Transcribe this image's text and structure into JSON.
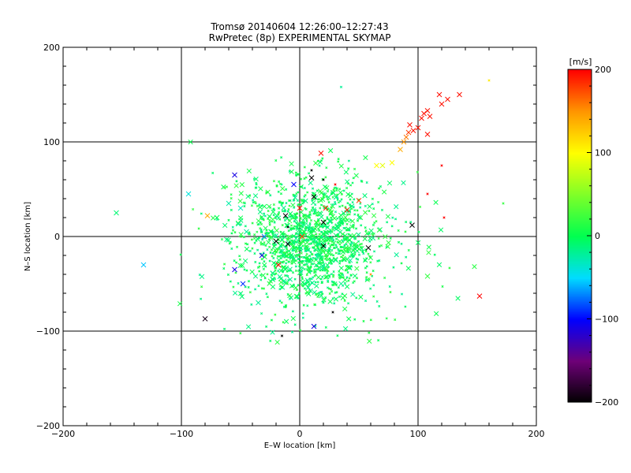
{
  "chart_data": {
    "type": "scatter",
    "title": "Tromsø 20140604 12:26:00–12:27:43",
    "subtitle": "RwPretec (8p) EXPERIMENTAL SKYMAP",
    "xlabel": "E–W location [km]",
    "ylabel": "N–S location [km]",
    "xlim": [
      -200,
      200
    ],
    "ylim": [
      -200,
      200
    ],
    "xticks": [
      "−200",
      "−100",
      "0",
      "100",
      "200"
    ],
    "yticks": [
      "−200",
      "−100",
      "0",
      "100",
      "200"
    ],
    "grid": true,
    "colorbar": {
      "label": "[m/s]",
      "range": [
        -200,
        200
      ],
      "ticks": [
        "200",
        "100",
        "0",
        "−100",
        "−200"
      ]
    },
    "large_markers": [
      {
        "x": -155,
        "y": 25,
        "v": -10
      },
      {
        "x": -132,
        "y": -30,
        "v": -55
      },
      {
        "x": -94,
        "y": 45,
        "v": -40
      },
      {
        "x": -80,
        "y": -87,
        "v": -190
      },
      {
        "x": -78,
        "y": 22,
        "v": 140
      },
      {
        "x": -70,
        "y": 20,
        "v": 0
      },
      {
        "x": -60,
        "y": 35,
        "v": -25
      },
      {
        "x": -55,
        "y": 65,
        "v": -110
      },
      {
        "x": -55,
        "y": -35,
        "v": -110
      },
      {
        "x": -50,
        "y": 30,
        "v": -30
      },
      {
        "x": -48,
        "y": -50,
        "v": -90
      },
      {
        "x": -45,
        "y": 5,
        "v": -20
      },
      {
        "x": -35,
        "y": -70,
        "v": -20
      },
      {
        "x": -32,
        "y": -20,
        "v": -110
      },
      {
        "x": -30,
        "y": 0,
        "v": -70
      },
      {
        "x": -20,
        "y": -5,
        "v": -200
      },
      {
        "x": -18,
        "y": -30,
        "v": 200
      },
      {
        "x": -12,
        "y": 22,
        "v": -200
      },
      {
        "x": -10,
        "y": -8,
        "v": -195
      },
      {
        "x": -5,
        "y": 55,
        "v": -100
      },
      {
        "x": 0,
        "y": 30,
        "v": 190
      },
      {
        "x": 2,
        "y": 0,
        "v": 180
      },
      {
        "x": 10,
        "y": 62,
        "v": -200
      },
      {
        "x": 12,
        "y": 42,
        "v": -200
      },
      {
        "x": 12,
        "y": -95,
        "v": -110
      },
      {
        "x": 18,
        "y": 88,
        "v": 195
      },
      {
        "x": 20,
        "y": 15,
        "v": -200
      },
      {
        "x": 20,
        "y": -10,
        "v": -200
      },
      {
        "x": 22,
        "y": 30,
        "v": 190
      },
      {
        "x": 40,
        "y": 28,
        "v": 190
      },
      {
        "x": 50,
        "y": 38,
        "v": 180
      },
      {
        "x": 58,
        "y": -12,
        "v": -200
      },
      {
        "x": 65,
        "y": 75,
        "v": 100
      },
      {
        "x": 70,
        "y": 75,
        "v": 90
      },
      {
        "x": 78,
        "y": 78,
        "v": 100
      },
      {
        "x": 85,
        "y": 92,
        "v": 140
      },
      {
        "x": 88,
        "y": 100,
        "v": 150
      },
      {
        "x": 90,
        "y": 105,
        "v": 160
      },
      {
        "x": 92,
        "y": 110,
        "v": 180
      },
      {
        "x": 93,
        "y": 118,
        "v": 195
      },
      {
        "x": 95,
        "y": 12,
        "v": -200
      },
      {
        "x": 96,
        "y": 112,
        "v": 195
      },
      {
        "x": 100,
        "y": 115,
        "v": 195
      },
      {
        "x": 103,
        "y": 125,
        "v": 195
      },
      {
        "x": 105,
        "y": 130,
        "v": 195
      },
      {
        "x": 108,
        "y": 133,
        "v": 195
      },
      {
        "x": 110,
        "y": 127,
        "v": 195
      },
      {
        "x": 108,
        "y": 108,
        "v": 195
      },
      {
        "x": 108,
        "y": -42,
        "v": 20
      },
      {
        "x": 118,
        "y": 150,
        "v": 195
      },
      {
        "x": 120,
        "y": 140,
        "v": 195
      },
      {
        "x": 125,
        "y": 145,
        "v": 195
      },
      {
        "x": 135,
        "y": 150,
        "v": 195
      },
      {
        "x": 152,
        "y": -63,
        "v": 200
      }
    ],
    "small_markers": [
      {
        "x": 160,
        "y": 165,
        "v": 110
      },
      {
        "x": 120,
        "y": 75,
        "v": 200
      },
      {
        "x": 122,
        "y": 20,
        "v": 200
      },
      {
        "x": 108,
        "y": 45,
        "v": 200
      },
      {
        "x": 172,
        "y": 35,
        "v": 20
      },
      {
        "x": 35,
        "y": 158,
        "v": -20
      },
      {
        "x": 20,
        "y": 60,
        "v": -200
      },
      {
        "x": 30,
        "y": 55,
        "v": 200
      },
      {
        "x": -15,
        "y": -105,
        "v": -200
      },
      {
        "x": 28,
        "y": -80,
        "v": -200
      },
      {
        "x": -10,
        "y": 10,
        "v": -200
      },
      {
        "x": 60,
        "y": -40,
        "v": 150
      },
      {
        "x": 10,
        "y": 70,
        "v": -200
      }
    ],
    "green_cloud": {
      "description_ref": "dense cluster of near-zero velocity points",
      "center": [
        10,
        -5
      ],
      "count": 1500,
      "value_range": [
        -20,
        20
      ]
    }
  }
}
